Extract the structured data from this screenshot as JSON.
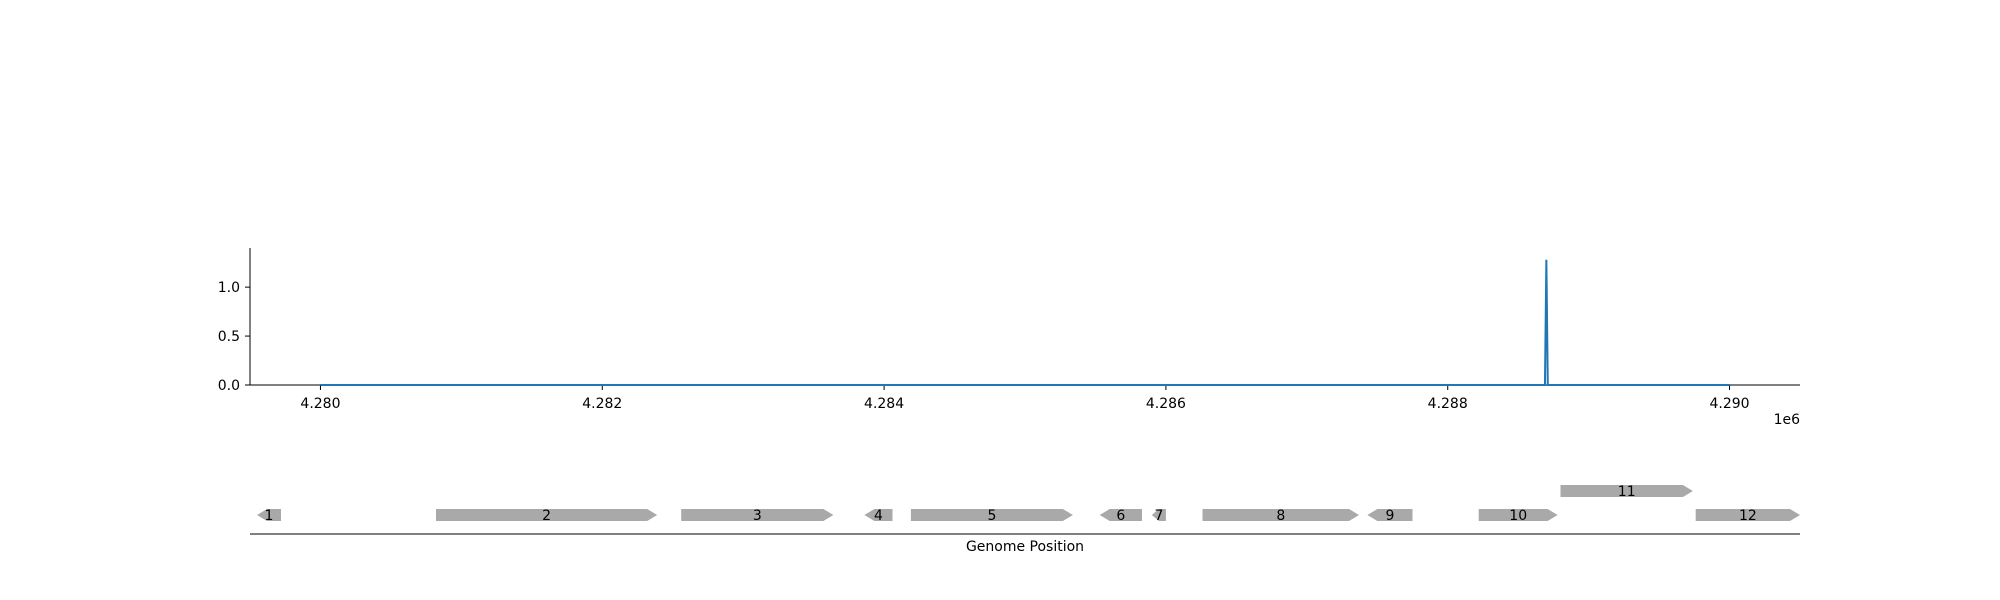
{
  "chart_data": {
    "type": "line",
    "title": "",
    "xlabel": "",
    "ylabel": "",
    "x_offset_label": "1e6",
    "xlim": [
      4279500,
      4290500
    ],
    "ylim": [
      0,
      1.4
    ],
    "x_ticks": [
      4280000,
      4282000,
      4284000,
      4286000,
      4288000,
      4290000
    ],
    "x_tick_labels": [
      "4.280",
      "4.282",
      "4.284",
      "4.286",
      "4.288",
      "4.290"
    ],
    "y_ticks": [
      0.0,
      0.5,
      1.0
    ],
    "y_tick_labels": [
      "0.0",
      "0.5",
      "1.0"
    ],
    "grid": false,
    "series": [
      {
        "color": "#1f77b4",
        "x": [
          4280000,
          4288690,
          4288700,
          4288710,
          4290000
        ],
        "y": [
          0,
          0,
          1.28,
          0,
          0
        ]
      }
    ]
  },
  "gene_track": {
    "xlabel": "Genome Position",
    "fill_color": "#a9a9a9",
    "genes": [
      {
        "label": "1",
        "start": 4279550,
        "end": 4279720,
        "strand": -1,
        "row": 0
      },
      {
        "label": "2",
        "start": 4280820,
        "end": 4282390,
        "strand": 1,
        "row": 0
      },
      {
        "label": "3",
        "start": 4282560,
        "end": 4283640,
        "strand": 1,
        "row": 0
      },
      {
        "label": "4",
        "start": 4283860,
        "end": 4284060,
        "strand": -1,
        "row": 0
      },
      {
        "label": "5",
        "start": 4284190,
        "end": 4285340,
        "strand": 1,
        "row": 0
      },
      {
        "label": "6",
        "start": 4285530,
        "end": 4285830,
        "strand": -1,
        "row": 0
      },
      {
        "label": "7",
        "start": 4285900,
        "end": 4286000,
        "strand": -1,
        "row": 0
      },
      {
        "label": "8",
        "start": 4286260,
        "end": 4287370,
        "strand": 1,
        "row": 0
      },
      {
        "label": "9",
        "start": 4287430,
        "end": 4287750,
        "strand": -1,
        "row": 0
      },
      {
        "label": "10",
        "start": 4288220,
        "end": 4288780,
        "strand": 1,
        "row": 0
      },
      {
        "label": "11",
        "start": 4288800,
        "end": 4289740,
        "strand": 1,
        "row": 1
      },
      {
        "label": "12",
        "start": 4289760,
        "end": 4290500,
        "strand": 1,
        "row": 0
      }
    ]
  }
}
